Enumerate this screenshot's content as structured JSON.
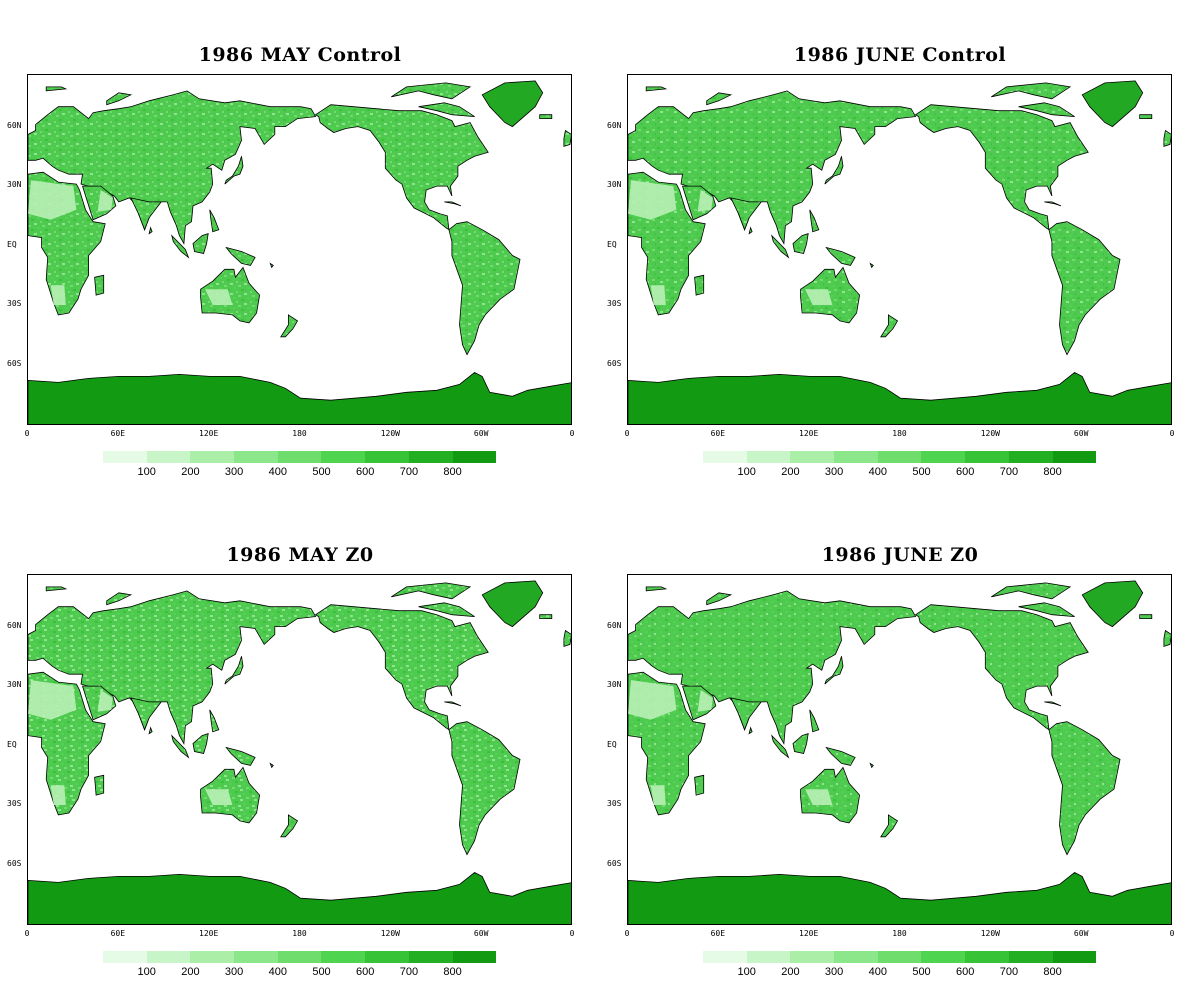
{
  "panels": [
    {
      "title": "1986 MAY Control"
    },
    {
      "title": "1986 JUNE Control"
    },
    {
      "title": "1986 MAY Z0"
    },
    {
      "title": "1986 JUNE Z0"
    }
  ],
  "axes": {
    "lat_labels": [
      "60N",
      "30N",
      "EQ",
      "30S",
      "60S"
    ],
    "lon_labels": [
      "0",
      "60E",
      "120E",
      "180",
      "120W",
      "60W",
      "0"
    ]
  },
  "colorbar": {
    "labels": [
      "100",
      "200",
      "300",
      "400",
      "500",
      "600",
      "700",
      "800"
    ],
    "colors": [
      "#e6fbe6",
      "#c8f5c8",
      "#aaeea8",
      "#8ce68a",
      "#6edd6c",
      "#4fd44f",
      "#36c436",
      "#22b022",
      "#139a13"
    ]
  },
  "map": {
    "land_color": "#4fc94f",
    "antarctica_color": "#139a13",
    "greenland_color": "#22a822",
    "desert_color": "#b8f0b5",
    "coast_color": "#000000"
  }
}
